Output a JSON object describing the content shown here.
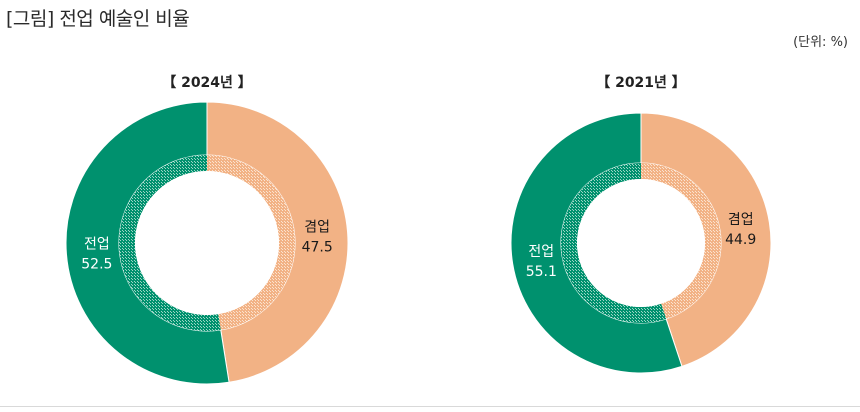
{
  "title": "[그림] 전업 예술인 비율",
  "unit_note": "(단위: %)",
  "colors": {
    "full_time": "#00916E",
    "part_time": "#F2B285",
    "full_time_inner": "#5FB79F",
    "part_time_inner": "#F6D1B4"
  },
  "chart_data": [
    {
      "type": "pie",
      "variant": "donut",
      "title": "【 2024년 】",
      "slices": [
        {
          "label": "겸업",
          "value": 47.5,
          "value_text": "47.5",
          "color": "#F2B285"
        },
        {
          "label": "전업",
          "value": 52.5,
          "value_text": "52.5",
          "color": "#00916E"
        }
      ]
    },
    {
      "type": "pie",
      "variant": "donut",
      "title": "【 2021년 】",
      "slices": [
        {
          "label": "겸업",
          "value": 44.9,
          "value_text": "44.9",
          "color": "#F2B285"
        },
        {
          "label": "전업",
          "value": 55.1,
          "value_text": "55.1",
          "color": "#00916E"
        }
      ]
    }
  ]
}
